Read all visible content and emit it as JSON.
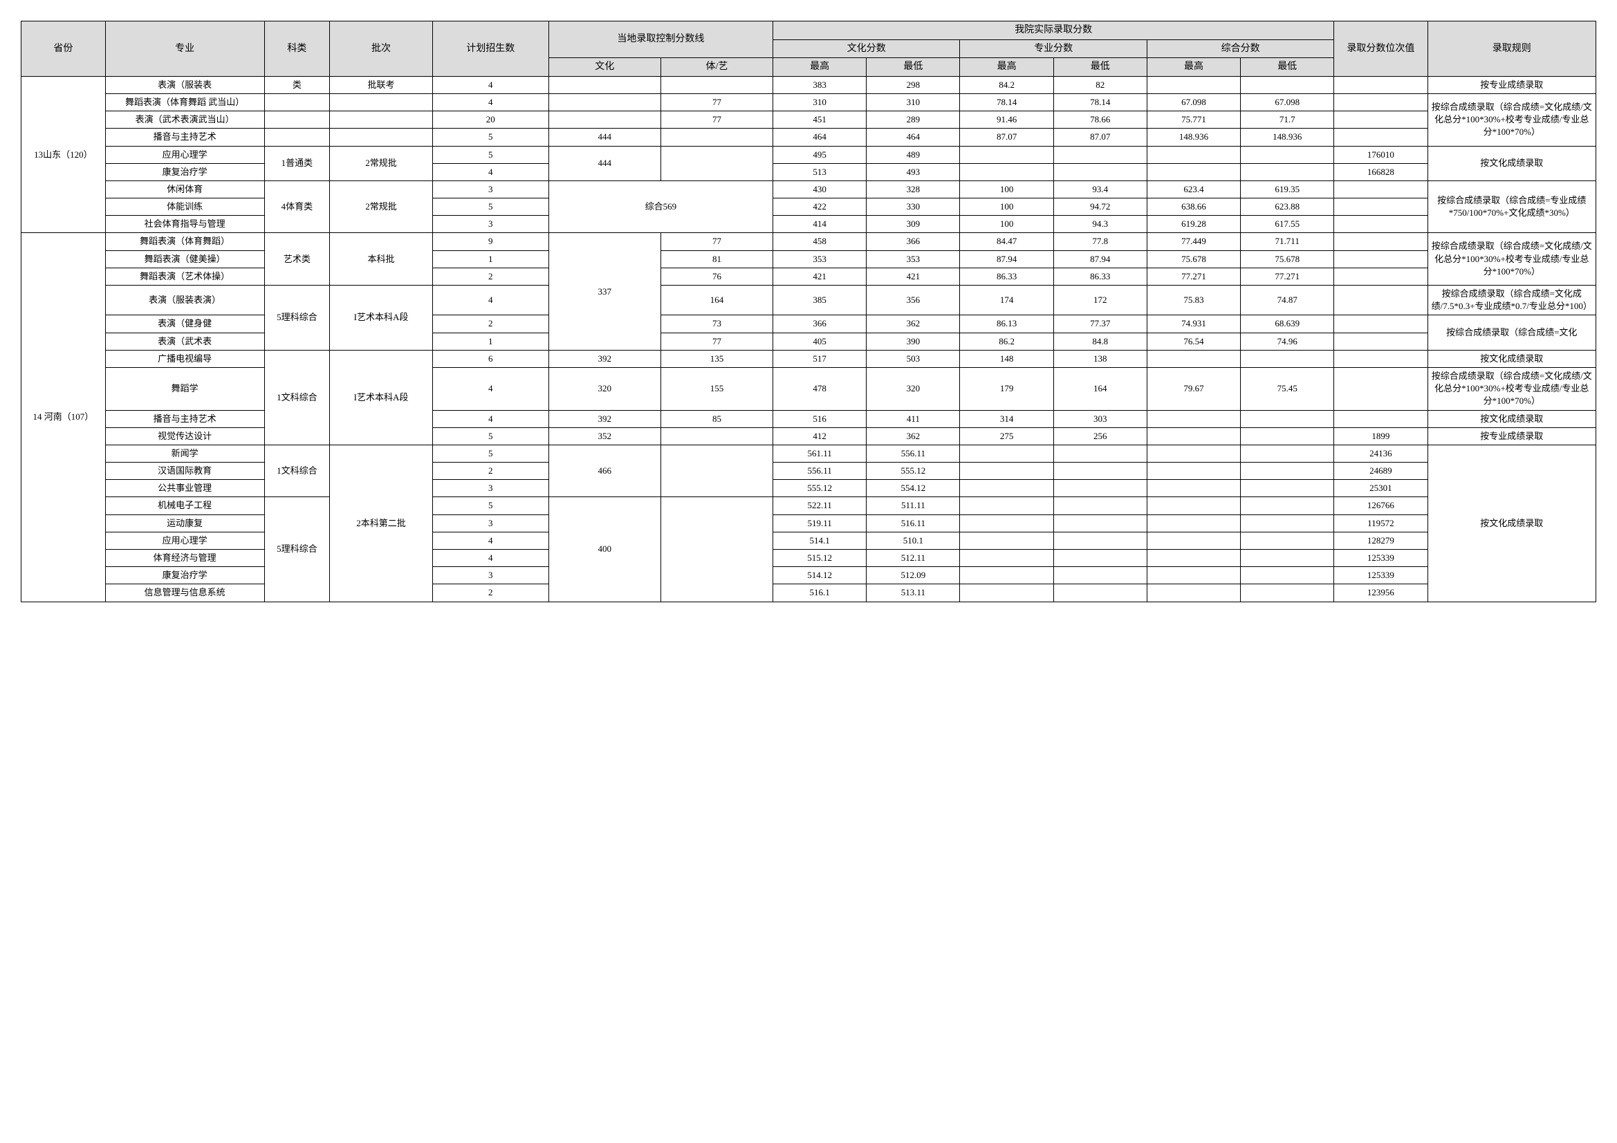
{
  "headers": {
    "province": "省份",
    "major": "专业",
    "keLei": "科类",
    "piCi": "批次",
    "plan": "计划招生数",
    "localLine": "当地录取控制分数线",
    "localWenhua": "文化",
    "localTiyi": "体/艺",
    "ourScore": "我院实际录取分数",
    "wenhuaScore": "文化分数",
    "zhuanyeScore": "专业分数",
    "zongheScore": "综合分数",
    "zuigao": "最高",
    "zuidi": "最低",
    "rank": "录取分数位次值",
    "rule": "录取规则"
  },
  "provinces": {
    "sd": "13山东（120）",
    "hn": "14\n河南（107）"
  },
  "keLei": {
    "lei": "类",
    "putong": "1普通类",
    "tiyu": "4体育类",
    "yishu": "艺术类",
    "like": "5理科综合",
    "wenke": "1文科综合"
  },
  "piCi": {
    "liankao": "批联考",
    "changgui": "2常规批",
    "benke": "本科批",
    "yishuA": "I艺术本科A段",
    "benke2": "2本科第二批"
  },
  "rules": {
    "zhuanye": "按专业成绩录取",
    "zonghe1": "按综合成绩录取（综合成绩=文化成绩/文化总分*100*30%+校考专业成绩/专业总分*100*70%）",
    "wenhua": "按文化成绩录取",
    "zonghe2": "按综合成绩录取（综合成绩=专业成绩*750/100*70%+文化成绩*30%）",
    "zonghe3": "按综合成绩录取（综合成绩=文化成绩/7.5*0.3+专业成绩*0.7/专业总分*100）",
    "zonghe4": "按综合成绩录取（综合成绩=文化"
  },
  "rows": [
    {
      "prov": "sd",
      "major": "表演（服装表",
      "ke": "lei",
      "pici": "liankao",
      "plan": "4",
      "wh": "",
      "ty": "",
      "whH": "383",
      "whL": "298",
      "zyH": "84.2",
      "zyL": "82",
      "zgH": "",
      "zgL": "",
      "rank": "",
      "rule": "zhuanye"
    },
    {
      "major": "舞蹈表演（体育舞蹈 武当山）",
      "plan": "4",
      "wh": "",
      "ty": "77",
      "whH": "310",
      "whL": "310",
      "zyH": "78.14",
      "zyL": "78.14",
      "zgH": "67.098",
      "zgL": "67.098",
      "rank": ""
    },
    {
      "major": "表演（武术表演武当山）",
      "plan": "20",
      "wh": "",
      "ty": "77",
      "whH": "451",
      "whL": "289",
      "zyH": "91.46",
      "zyL": "78.66",
      "zgH": "75.771",
      "zgL": "71.7",
      "rank": ""
    },
    {
      "major": "播音与主持艺术",
      "plan": "5",
      "wh": "444",
      "ty": "",
      "whH": "464",
      "whL": "464",
      "zyH": "87.07",
      "zyL": "87.07",
      "zgH": "148.936",
      "zgL": "148.936",
      "rank": ""
    },
    {
      "major": "应用心理学",
      "ke": "putong",
      "pici": "changgui",
      "plan": "5",
      "wh": "444",
      "ty": "",
      "whH": "495",
      "whL": "489",
      "zyH": "",
      "zyL": "",
      "zgH": "",
      "zgL": "",
      "rank": "176010",
      "rule": "wenhua"
    },
    {
      "major": "康复治疗学",
      "plan": "4",
      "whH": "513",
      "whL": "493",
      "rank": "166828"
    },
    {
      "major": "休闲体育",
      "ke": "tiyu",
      "pici": "changgui",
      "plan": "3",
      "wh": "综合569",
      "whH": "430",
      "whL": "328",
      "zyH": "100",
      "zyL": "93.4",
      "zgH": "623.4",
      "zgL": "619.35",
      "rank": "",
      "rule": "zonghe2"
    },
    {
      "major": "体能训练",
      "plan": "5",
      "whH": "422",
      "whL": "330",
      "zyH": "100",
      "zyL": "94.72",
      "zgH": "638.66",
      "zgL": "623.88",
      "rank": ""
    },
    {
      "major": "社会体育指导与管理",
      "plan": "3",
      "whH": "414",
      "whL": "309",
      "zyH": "100",
      "zyL": "94.3",
      "zgH": "619.28",
      "zgL": "617.55",
      "rank": ""
    },
    {
      "prov": "hn",
      "major": "舞蹈表演（体育舞蹈）",
      "ke": "yishu",
      "pici": "benke",
      "plan": "9",
      "wh": "337",
      "ty": "77",
      "whH": "458",
      "whL": "366",
      "zyH": "84.47",
      "zyL": "77.8",
      "zgH": "77.449",
      "zgL": "71.711",
      "rank": "",
      "rule": "zonghe1"
    },
    {
      "major": "舞蹈表演（健美操）",
      "plan": "1",
      "ty": "81",
      "whH": "353",
      "whL": "353",
      "zyH": "87.94",
      "zyL": "87.94",
      "zgH": "75.678",
      "zgL": "75.678",
      "rank": ""
    },
    {
      "major": "舞蹈表演（艺术体操）",
      "plan": "2",
      "ty": "76",
      "whH": "421",
      "whL": "421",
      "zyH": "86.33",
      "zyL": "86.33",
      "zgH": "77.271",
      "zgL": "77.271",
      "rank": ""
    },
    {
      "major": "表演（服装表演）",
      "ke": "like",
      "pici": "yishuA",
      "plan": "4",
      "ty": "164",
      "whH": "385",
      "whL": "356",
      "zyH": "174",
      "zyL": "172",
      "zgH": "75.83",
      "zgL": "74.87",
      "rank": "",
      "rule": "zonghe3"
    },
    {
      "major": "表演（健身健",
      "plan": "2",
      "ty": "73",
      "whH": "366",
      "whL": "362",
      "zyH": "86.13",
      "zyL": "77.37",
      "zgH": "74.931",
      "zgL": "68.639",
      "rank": "",
      "rule": "zonghe4"
    },
    {
      "major": "表演（武术表",
      "plan": "1",
      "ty": "77",
      "whH": "405",
      "whL": "390",
      "zyH": "86.2",
      "zyL": "84.8",
      "zgH": "76.54",
      "zgL": "74.96",
      "rank": ""
    },
    {
      "major": "广播电视编导",
      "ke": "wenke",
      "pici": "yishuA",
      "plan": "6",
      "wh": "392",
      "ty": "135",
      "whH": "517",
      "whL": "503",
      "zyH": "148",
      "zyL": "138",
      "zgH": "",
      "zgL": "",
      "rank": "",
      "rule": "wenhua"
    },
    {
      "major": "舞蹈学",
      "plan": "4",
      "wh": "320",
      "ty": "155",
      "whH": "478",
      "whL": "320",
      "zyH": "179",
      "zyL": "164",
      "zgH": "79.67",
      "zgL": "75.45",
      "rank": "",
      "rule": "zonghe1"
    },
    {
      "major": "播音与主持艺术",
      "plan": "4",
      "wh": "392",
      "ty": "85",
      "whH": "516",
      "whL": "411",
      "zyH": "314",
      "zyL": "303",
      "zgH": "",
      "zgL": "",
      "rank": "",
      "rule": "wenhua"
    },
    {
      "major": "视觉传达设计",
      "plan": "5",
      "wh": "352",
      "ty": "",
      "whH": "412",
      "whL": "362",
      "zyH": "275",
      "zyL": "256",
      "zgH": "",
      "zgL": "",
      "rank": "1899",
      "rule": "zhuanye"
    },
    {
      "major": "新闻学",
      "ke": "wenke",
      "pici": "benke2",
      "plan": "5",
      "wh": "466",
      "ty": "",
      "whH": "561.11",
      "whL": "556.11",
      "zyH": "",
      "zyL": "",
      "zgH": "",
      "zgL": "",
      "rank": "24136",
      "rule": "wenhua"
    },
    {
      "major": "汉语国际教育",
      "plan": "2",
      "whH": "556.11",
      "whL": "555.12",
      "rank": "24689"
    },
    {
      "major": "公共事业管理",
      "plan": "3",
      "whH": "555.12",
      "whL": "554.12",
      "rank": "25301"
    },
    {
      "major": "机械电子工程",
      "ke": "like",
      "plan": "5",
      "wh": "400",
      "whH": "522.11",
      "whL": "511.11",
      "rank": "126766"
    },
    {
      "major": "运动康复",
      "plan": "3",
      "whH": "519.11",
      "whL": "516.11",
      "rank": "119572"
    },
    {
      "major": "应用心理学",
      "plan": "4",
      "whH": "514.1",
      "whL": "510.1",
      "rank": "128279"
    },
    {
      "major": "体育经济与管理",
      "plan": "4",
      "whH": "515.12",
      "whL": "512.11",
      "rank": "125339"
    },
    {
      "major": "康复治疗学",
      "plan": "3",
      "whH": "514.12",
      "whL": "512.09",
      "rank": "125339"
    },
    {
      "major": "信息管理与信息系统",
      "plan": "2",
      "whH": "516.1",
      "whL": "513.11",
      "rank": "123956"
    }
  ]
}
